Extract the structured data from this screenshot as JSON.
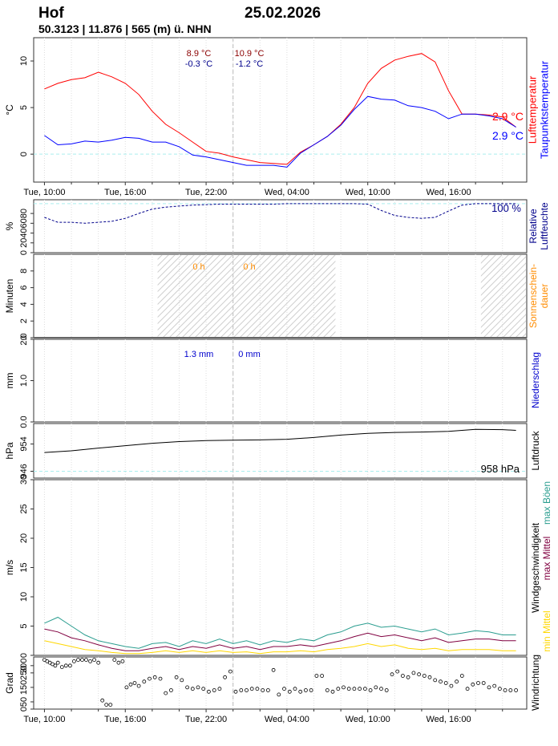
{
  "header": {
    "station": "Hof",
    "date": "25.02.2026",
    "coords": "50.3123 | 11.876 | 565 (m) ü. NHN"
  },
  "x_axis": {
    "ticks": [
      {
        "h": 10,
        "label": "Tue, 10:00"
      },
      {
        "h": 16,
        "label": "Tue, 16:00"
      },
      {
        "h": 22,
        "label": "Tue, 22:00"
      },
      {
        "h": 28,
        "label": "Wed, 04:00"
      },
      {
        "h": 34,
        "label": "Wed, 10:00"
      },
      {
        "h": 40,
        "label": "Wed, 16:00"
      }
    ],
    "minor_ticks": [
      12,
      14,
      18,
      20,
      24,
      26,
      30,
      32,
      36,
      38,
      42,
      44
    ],
    "start_h": 9.2,
    "end_h": 45.8,
    "midnight_h": 24
  },
  "colors": {
    "temp": "#ff0000",
    "dew": "#0000ff",
    "humidity": "#00008b",
    "sun": "#ff8c00",
    "precip": "#0000cd",
    "pressure": "#000000",
    "gust": "#2a9d8f",
    "max_mean": "#800040",
    "min_mean": "#ffd700",
    "guide": "#aaeeee"
  },
  "panels": {
    "temperature": {
      "ylabel": "°C",
      "right_label_1": "Lufttemperatur",
      "right_label_2": "Taupunktstemperatur",
      "current_temp": "2.9 °C",
      "current_dew": "2.9 °C",
      "ann_day1_max": "8.9 °C",
      "ann_day1_min": "-0.3 °C",
      "ann_day2_max": "10.9 °C",
      "ann_day2_min": "-1.2 °C",
      "yticks": [
        "0",
        "5",
        "10"
      ],
      "ylim": [
        -3,
        12.5
      ]
    },
    "humidity": {
      "ylabel": "%",
      "right_label_1": "Relative",
      "right_label_2": "Luftfeuchte",
      "current": "100 %",
      "yticks": [
        "0",
        "20",
        "40",
        "60",
        "80"
      ],
      "ylim": [
        0,
        108
      ]
    },
    "sunshine": {
      "ylabel": "Minuten",
      "right_label_1": "Sonnenschein-",
      "right_label_2": "dauer",
      "ann_day1": "0 h",
      "ann_day2": "0 h",
      "yticks": [
        "0",
        "2",
        "4",
        "6",
        "8"
      ],
      "ylim": [
        0,
        10
      ]
    },
    "precipitation": {
      "ylabel": "mm",
      "right_label_1": "Niederschlag",
      "ann_day1": "1.3 mm",
      "ann_day2": "0 mm",
      "yticks": [
        "0.0",
        "1.0",
        "2.0"
      ],
      "ylim": [
        0,
        2
      ]
    },
    "pressure": {
      "ylabel": "hPa",
      "right_label_1": "Luftdruck",
      "current": "958 hPa",
      "yticks": [
        "946",
        "954"
      ],
      "ylim": [
        944,
        960
      ]
    },
    "wind_speed": {
      "ylabel": "m/s",
      "right_label_1": "Windgeschwindigkeit",
      "legend_gust": "max Böen",
      "legend_max": "max Mittel",
      "legend_min": "min Mittel",
      "yticks": [
        "0",
        "5",
        "10",
        "15",
        "20",
        "25",
        "30"
      ],
      "ylim": [
        0,
        30
      ]
    },
    "wind_direction": {
      "ylabel": "Grad",
      "right_label_1": "Windrichtung",
      "yticks": [
        "0",
        "50",
        "150",
        "250",
        "300"
      ],
      "ylim": [
        0,
        360
      ]
    }
  },
  "chart_data": [
    {
      "type": "line",
      "title": "Lufttemperatur / Taupunktstemperatur",
      "x_unit": "hours since Tue 00:00",
      "series": [
        {
          "name": "Lufttemperatur",
          "x": [
            10,
            11,
            12,
            13,
            14,
            15,
            16,
            17,
            18,
            19,
            20,
            21,
            22,
            23,
            24,
            25,
            26,
            27,
            28,
            29,
            30,
            31,
            32,
            33,
            34,
            35,
            36,
            37,
            38,
            39,
            40,
            41,
            42,
            43,
            44,
            45
          ],
          "y": [
            7.0,
            7.6,
            8.0,
            8.2,
            8.8,
            8.3,
            7.6,
            6.4,
            4.6,
            3.2,
            2.3,
            1.3,
            0.3,
            0.1,
            -0.3,
            -0.6,
            -0.9,
            -1.0,
            -1.1,
            0.2,
            1.0,
            1.9,
            3.2,
            5.0,
            7.6,
            9.2,
            10.1,
            10.5,
            10.8,
            9.9,
            6.8,
            4.3,
            4.3,
            4.2,
            4.0,
            2.9
          ]
        },
        {
          "name": "Taupunktstemperatur",
          "x": [
            10,
            11,
            12,
            13,
            14,
            15,
            16,
            17,
            18,
            19,
            20,
            21,
            22,
            23,
            24,
            25,
            26,
            27,
            28,
            29,
            30,
            31,
            32,
            33,
            34,
            35,
            36,
            37,
            38,
            39,
            40,
            41,
            42,
            43,
            44,
            45
          ],
          "y": [
            2.0,
            1.0,
            1.1,
            1.4,
            1.3,
            1.5,
            1.8,
            1.7,
            1.3,
            1.3,
            0.8,
            -0.1,
            -0.3,
            -0.6,
            -0.9,
            -1.2,
            -1.2,
            -1.2,
            -1.4,
            0.1,
            1.0,
            1.9,
            3.1,
            4.8,
            6.2,
            5.9,
            5.8,
            5.2,
            5.0,
            4.6,
            3.8,
            4.3,
            4.3,
            4.1,
            3.8,
            2.9
          ]
        }
      ]
    },
    {
      "type": "line",
      "title": "Relative Luftfeuchte",
      "series": [
        {
          "name": "Relative Luftfeuchte",
          "x": [
            10,
            11,
            12,
            13,
            14,
            15,
            16,
            17,
            18,
            19,
            20,
            21,
            22,
            23,
            24,
            25,
            26,
            27,
            28,
            29,
            30,
            31,
            32,
            33,
            34,
            35,
            36,
            37,
            38,
            39,
            40,
            41,
            42,
            43,
            44,
            45
          ],
          "y": [
            72,
            62,
            62,
            60,
            62,
            64,
            70,
            80,
            89,
            93,
            95,
            97,
            98,
            99,
            99,
            99,
            99,
            99,
            100,
            100,
            100,
            100,
            100,
            100,
            99,
            86,
            76,
            72,
            70,
            72,
            85,
            97,
            100,
            100,
            100,
            100
          ]
        }
      ]
    },
    {
      "type": "bar",
      "title": "Sonnenscheindauer",
      "series": [
        {
          "name": "Sonnenscheindauer",
          "x": [],
          "y": []
        }
      ]
    },
    {
      "type": "bar",
      "title": "Niederschlag",
      "series": [
        {
          "name": "Niederschlag",
          "x": [],
          "y": []
        }
      ]
    },
    {
      "type": "line",
      "title": "Luftdruck",
      "series": [
        {
          "name": "Luftdruck",
          "x": [
            10,
            12,
            14,
            16,
            18,
            20,
            22,
            24,
            26,
            28,
            30,
            32,
            34,
            36,
            38,
            40,
            42,
            44,
            45
          ],
          "y": [
            951.5,
            952,
            952.8,
            953.5,
            954.2,
            954.7,
            955,
            955.1,
            955.2,
            955.4,
            955.9,
            956.6,
            957.1,
            957.4,
            957.5,
            957.7,
            958.3,
            958.2,
            958
          ]
        }
      ]
    },
    {
      "type": "line",
      "title": "Windgeschwindigkeit",
      "series": [
        {
          "name": "max Böen",
          "x": [
            10,
            11,
            12,
            13,
            14,
            15,
            16,
            17,
            18,
            19,
            20,
            21,
            22,
            23,
            24,
            25,
            26,
            27,
            28,
            29,
            30,
            31,
            32,
            33,
            34,
            35,
            36,
            37,
            38,
            39,
            40,
            41,
            42,
            43,
            44,
            45
          ],
          "y": [
            5.5,
            6.5,
            5.0,
            3.5,
            2.5,
            2.0,
            1.5,
            1.2,
            2.0,
            2.2,
            1.5,
            2.5,
            2.0,
            2.8,
            2.0,
            2.5,
            1.8,
            2.5,
            2.2,
            2.8,
            2.5,
            3.5,
            4.0,
            5.0,
            5.5,
            4.8,
            5.0,
            4.5,
            4.0,
            4.5,
            3.5,
            3.8,
            4.2,
            4.0,
            3.5,
            3.5
          ]
        },
        {
          "name": "max Mittel",
          "x": [
            10,
            11,
            12,
            13,
            14,
            15,
            16,
            17,
            18,
            19,
            20,
            21,
            22,
            23,
            24,
            25,
            26,
            27,
            28,
            29,
            30,
            31,
            32,
            33,
            34,
            35,
            36,
            37,
            38,
            39,
            40,
            41,
            42,
            43,
            44,
            45
          ],
          "y": [
            4.5,
            4.0,
            3.0,
            2.5,
            1.8,
            1.2,
            0.8,
            0.8,
            1.2,
            1.5,
            1.0,
            1.5,
            1.2,
            1.8,
            1.2,
            1.5,
            1.0,
            1.5,
            1.5,
            1.8,
            1.5,
            2.0,
            2.5,
            3.2,
            3.8,
            3.2,
            3.5,
            3.0,
            2.5,
            3.0,
            2.2,
            2.5,
            2.8,
            2.8,
            2.5,
            2.5
          ]
        },
        {
          "name": "min Mittel",
          "x": [
            10,
            11,
            12,
            13,
            14,
            15,
            16,
            17,
            18,
            19,
            20,
            21,
            22,
            23,
            24,
            25,
            26,
            27,
            28,
            29,
            30,
            31,
            32,
            33,
            34,
            35,
            36,
            37,
            38,
            39,
            40,
            41,
            42,
            43,
            44,
            45
          ],
          "y": [
            2.5,
            2.0,
            1.5,
            1.0,
            0.8,
            0.5,
            0.3,
            0.3,
            0.5,
            0.8,
            0.5,
            0.8,
            0.5,
            0.8,
            0.5,
            0.6,
            0.3,
            0.6,
            0.6,
            0.8,
            0.6,
            1.0,
            1.2,
            1.5,
            2.0,
            1.5,
            1.8,
            1.2,
            1.0,
            1.2,
            0.8,
            1.0,
            1.0,
            1.0,
            0.8,
            0.8
          ]
        }
      ]
    },
    {
      "type": "scatter",
      "title": "Windrichtung",
      "series": [
        {
          "name": "Windrichtung",
          "x": [
            10.0,
            10.2,
            10.4,
            10.6,
            10.8,
            11.0,
            11.3,
            11.6,
            11.9,
            12.2,
            12.5,
            12.8,
            13.1,
            13.4,
            13.7,
            14.0,
            14.3,
            14.6,
            14.9,
            15.2,
            15.5,
            15.8,
            16.1,
            16.4,
            16.7,
            17.0,
            17.4,
            17.8,
            18.2,
            18.6,
            19.0,
            19.4,
            19.8,
            20.2,
            20.6,
            21.0,
            21.4,
            21.8,
            22.2,
            22.6,
            23.0,
            23.4,
            23.8,
            24.2,
            24.6,
            25.0,
            25.4,
            25.8,
            26.2,
            26.6,
            27.0,
            27.4,
            27.8,
            28.2,
            28.6,
            29.0,
            29.4,
            29.8,
            30.2,
            30.6,
            31.0,
            31.4,
            31.8,
            32.2,
            32.6,
            33.0,
            33.4,
            33.8,
            34.2,
            34.6,
            35.0,
            35.4,
            35.8,
            36.2,
            36.6,
            37.0,
            37.4,
            37.8,
            38.2,
            38.6,
            39.0,
            39.4,
            39.8,
            40.2,
            40.6,
            41.0,
            41.4,
            41.8,
            42.2,
            42.6,
            43.0,
            43.4,
            43.8,
            44.2,
            44.6,
            45.0
          ],
          "y": [
            340,
            330,
            320,
            310,
            300,
            320,
            290,
            300,
            300,
            330,
            340,
            340,
            340,
            330,
            340,
            320,
            60,
            30,
            30,
            340,
            320,
            330,
            150,
            170,
            180,
            160,
            190,
            210,
            220,
            210,
            110,
            130,
            220,
            200,
            150,
            140,
            150,
            140,
            120,
            130,
            140,
            220,
            260,
            120,
            130,
            130,
            140,
            140,
            130,
            130,
            270,
            100,
            140,
            120,
            140,
            120,
            130,
            130,
            230,
            230,
            130,
            120,
            140,
            150,
            140,
            140,
            140,
            140,
            130,
            150,
            140,
            130,
            240,
            260,
            230,
            220,
            250,
            240,
            230,
            220,
            200,
            190,
            180,
            160,
            190,
            230,
            140,
            170,
            180,
            180,
            150,
            160,
            140,
            130,
            130,
            130
          ]
        }
      ]
    }
  ]
}
